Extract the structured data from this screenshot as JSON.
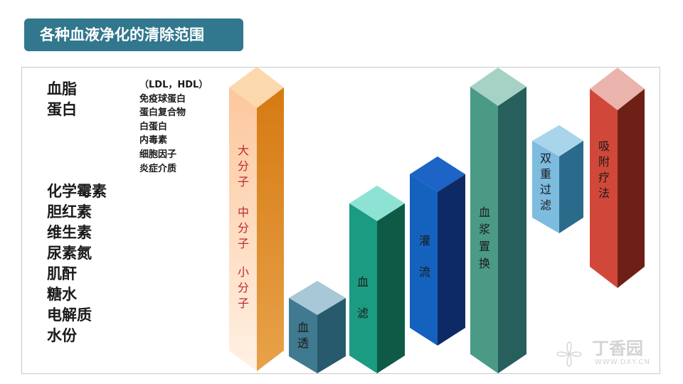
{
  "title": "各种血液净化的清除范围",
  "left_labels": {
    "group1": [
      "血脂",
      "蛋白"
    ],
    "group2": [
      "化学霉素",
      "胆红素",
      "维生素",
      "尿素氮",
      "肌酐",
      "糖水",
      "电解质",
      "水份"
    ]
  },
  "small_labels": [
    "（LDL，HDL）",
    "免疫球蛋白",
    "蛋白复合物",
    "白蛋白",
    "内毒素",
    "细胞因子",
    "炎症介质"
  ],
  "molecule_sizes": [
    "大分子",
    "中分子",
    "小分子"
  ],
  "columns": [
    {
      "name": "血透",
      "text_color": "#1a1a1a"
    },
    {
      "name": "血滤",
      "text_color": "#1a1a1a"
    },
    {
      "name": "灌流",
      "text_color": "#1a1a1a"
    },
    {
      "name": "血浆置换",
      "text_color": "#1a1a1a"
    },
    {
      "name": "双重过滤",
      "text_color": "#1a1a1a"
    },
    {
      "name": "吸附疗法",
      "text_color": "#1a1a1a"
    }
  ],
  "colors": {
    "title_bg": "#31778d",
    "molecule_text": "#c0282d"
  },
  "watermark": {
    "brand": "丁香园",
    "url": "WWW.DXY.CN"
  }
}
